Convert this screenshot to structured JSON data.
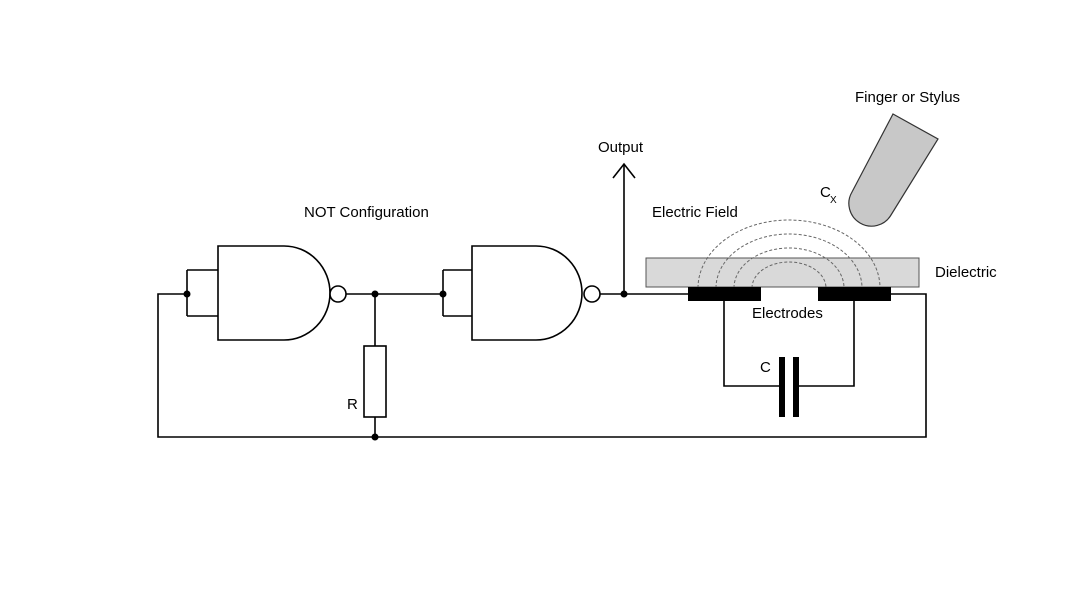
{
  "labels": {
    "not_configuration": "NOT Configuration",
    "output": "Output",
    "electric_field": "Electric Field",
    "dielectric": "Dielectric",
    "electrodes": "Electrodes",
    "finger_or_stylus": "Finger or Stylus",
    "cx_main": "C",
    "cx_sub": "X",
    "capacitor": "C",
    "resistor": "R"
  },
  "colors": {
    "dielectric_fill": "#d9d9d9",
    "finger_fill": "#c8c8c8",
    "electrode_fill": "#000000",
    "wire": "#000000"
  }
}
